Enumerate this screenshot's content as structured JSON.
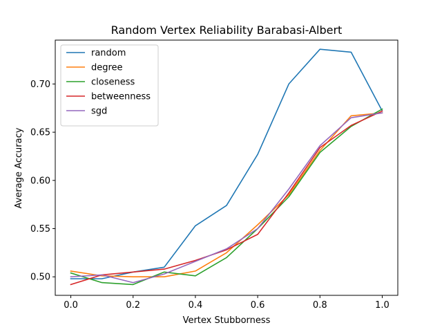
{
  "chart_data": {
    "type": "line",
    "title": "Random Vertex Reliability Barabasi-Albert",
    "xlabel": "Vertex Stubborness",
    "ylabel": "Average Accuracy",
    "xlim": [
      -0.05,
      1.05
    ],
    "ylim": [
      0.4808,
      0.7455
    ],
    "x_ticks": [
      0.0,
      0.2,
      0.4,
      0.6,
      0.8,
      1.0
    ],
    "x_tick_labels": [
      "0.0",
      "0.2",
      "0.4",
      "0.6",
      "0.8",
      "1.0"
    ],
    "y_ticks": [
      0.5,
      0.55,
      0.6,
      0.65,
      0.7
    ],
    "y_tick_labels": [
      "0.50",
      "0.55",
      "0.60",
      "0.65",
      "0.70"
    ],
    "grid": false,
    "legend_position": "top-left",
    "x": [
      0.0,
      0.1,
      0.2,
      0.3,
      0.4,
      0.5,
      0.6,
      0.7,
      0.8,
      0.9,
      1.0
    ],
    "series": [
      {
        "name": "random",
        "color": "#1f77b4",
        "values": [
          0.498,
          0.498,
          0.505,
          0.51,
          0.553,
          0.574,
          0.627,
          0.7,
          0.736,
          0.733,
          0.672
        ]
      },
      {
        "name": "degree",
        "color": "#ff7f0e",
        "values": [
          0.506,
          0.501,
          0.5,
          0.5,
          0.506,
          0.525,
          0.554,
          0.585,
          0.631,
          0.667,
          0.67
        ]
      },
      {
        "name": "closeness",
        "color": "#2ca02c",
        "values": [
          0.504,
          0.494,
          0.492,
          0.505,
          0.501,
          0.52,
          0.55,
          0.583,
          0.629,
          0.656,
          0.674
        ]
      },
      {
        "name": "betweenness",
        "color": "#d62728",
        "values": [
          0.492,
          0.502,
          0.505,
          0.508,
          0.517,
          0.528,
          0.544,
          0.587,
          0.634,
          0.657,
          0.672
        ]
      },
      {
        "name": "sgd",
        "color": "#9467bd",
        "values": [
          0.5,
          0.502,
          0.494,
          0.503,
          0.516,
          0.529,
          0.55,
          0.591,
          0.636,
          0.665,
          0.67
        ]
      }
    ]
  }
}
